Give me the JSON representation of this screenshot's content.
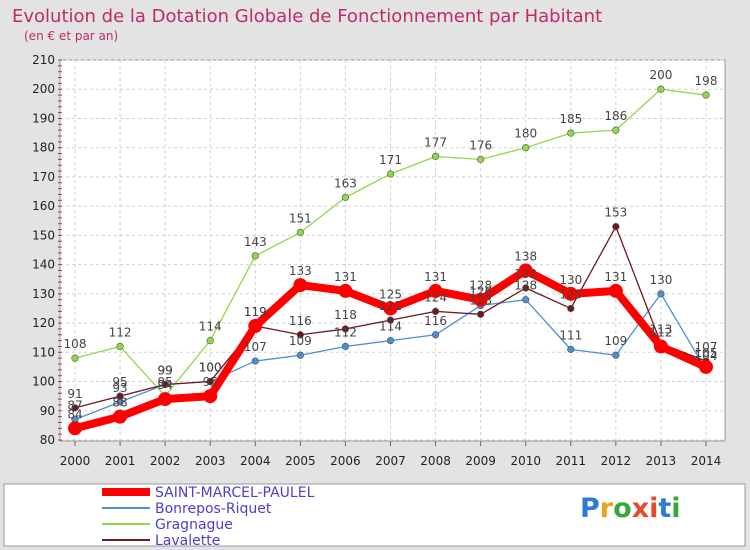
{
  "header": {
    "title": "Evolution de la Dotation Globale de Fonctionnement par Habitant",
    "subtitle": "(en € et par an)"
  },
  "logo": {
    "text": "Proxiti",
    "letters": [
      "P",
      "r",
      "o",
      "x",
      "i",
      "t",
      "i"
    ]
  },
  "chart_data": {
    "type": "line",
    "x": [
      2000,
      2001,
      2002,
      2003,
      2004,
      2005,
      2006,
      2007,
      2008,
      2009,
      2010,
      2011,
      2012,
      2013,
      2014
    ],
    "ylim": [
      80,
      210
    ],
    "yticks": [
      80,
      90,
      100,
      110,
      120,
      130,
      140,
      150,
      160,
      170,
      180,
      190,
      200,
      210
    ],
    "grid": true,
    "legend": "bottom-left",
    "series": [
      {
        "name": "SAINT-MARCEL-PAULEL",
        "color": "#ff0000",
        "values": [
          84,
          88,
          94,
          95,
          119,
          133,
          131,
          125,
          131,
          128,
          138,
          130,
          131,
          112,
          105
        ]
      },
      {
        "name": "Bonrepos-Riquet",
        "color": "#4c8fd0",
        "values": [
          87,
          93,
          99,
          100,
          107,
          109,
          112,
          114,
          116,
          126,
          128,
          111,
          109,
          130,
          104
        ]
      },
      {
        "name": "Gragnague",
        "color": "#8ed84a",
        "values": [
          108,
          112,
          95,
          114,
          143,
          151,
          163,
          171,
          177,
          176,
          180,
          185,
          186,
          200,
          198
        ]
      },
      {
        "name": "Lavalette",
        "color": "#6b1a1e",
        "values": [
          91,
          95,
          99,
          100,
          119,
          116,
          118,
          121,
          124,
          123,
          132,
          125,
          153,
          113,
          107
        ]
      }
    ]
  }
}
